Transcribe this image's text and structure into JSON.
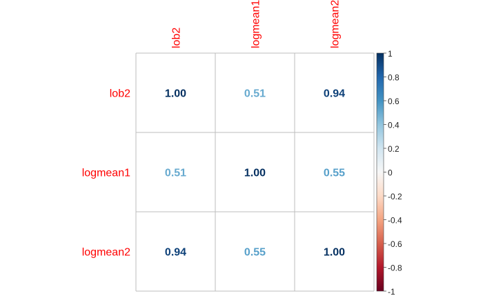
{
  "chart_data": {
    "type": "heatmap",
    "title": "",
    "variables": [
      "lob2",
      "logmean1",
      "logmean2"
    ],
    "matrix": [
      [
        "1.00",
        "0.51",
        "0.94"
      ],
      [
        "0.51",
        "1.00",
        "0.55"
      ],
      [
        "0.94",
        "0.55",
        "1.00"
      ]
    ],
    "value_range": [
      -1,
      1
    ],
    "colorbar": {
      "ticks": [
        "1",
        "0.8",
        "0.6",
        "0.4",
        "0.2",
        "0",
        "-0.2",
        "-0.4",
        "-0.6",
        "-0.8",
        "-1"
      ],
      "placement": "right"
    },
    "label_color": "#ff0000",
    "colors": {
      "high": "#053061",
      "mid": "#f7f7f7",
      "low": "#67001f",
      "grid": "#bdbdbd"
    }
  }
}
